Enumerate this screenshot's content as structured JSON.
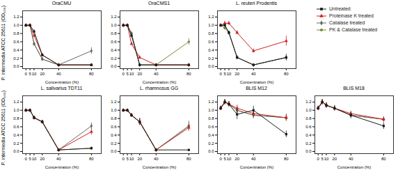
{
  "chart_data": [
    {
      "type": "line",
      "title": "OraCMU",
      "xlabel": "Concentration (%)",
      "ylabel": "P. intermedia ATCC 25611 (OD₆₀₀)",
      "x": [
        0,
        5,
        10,
        20,
        40,
        80
      ],
      "xlim": [
        -4,
        92
      ],
      "xticks": [
        0,
        5,
        10,
        20,
        40,
        80
      ],
      "ylim": [
        -0.05,
        1.35
      ],
      "yticks": [
        {
          "value": 0,
          "label": "0.0"
        },
        0.2,
        0.4,
        0.6,
        0.8,
        {
          "value": 1,
          "label": "1.0"
        },
        1.2
      ],
      "legend": "upper right",
      "series": [
        {
          "name": "Untreated",
          "color": "#1a1a1a",
          "marker": "square",
          "values": [
            1.0,
            1.0,
            0.85,
            0.28,
            0.04,
            0.04
          ],
          "errors": [
            0.03,
            0.03,
            0.04,
            0.04,
            0.01,
            0.01
          ]
        },
        {
          "name": "Proteinase K treated",
          "color": "#cc2222",
          "marker": "triangle",
          "values": [
            1.0,
            1.0,
            0.75,
            0.28,
            0.04,
            0.04
          ],
          "errors": [
            0.03,
            0.03,
            0.04,
            0.04,
            0.01,
            0.01
          ]
        },
        {
          "name": "Catalase treated",
          "color": "#666666",
          "marker": "diamond",
          "values": [
            1.0,
            1.0,
            0.55,
            0.18,
            0.04,
            0.38
          ],
          "errors": [
            0.03,
            0.03,
            0.04,
            0.04,
            0.01,
            0.08
          ]
        },
        {
          "name": "PK & Catalase treated",
          "color": "#778833",
          "marker": "circle",
          "values": [
            1.0,
            1.0,
            0.55,
            0.18,
            0.04,
            0.04
          ],
          "errors": [
            0.03,
            0.03,
            0.04,
            0.04,
            0.01,
            0.01
          ]
        }
      ]
    },
    {
      "type": "line",
      "title": "OraCMS1",
      "xlabel": "Concentration (%)",
      "x": [
        0,
        5,
        10,
        20,
        40,
        80
      ],
      "xlim": [
        -4,
        92
      ],
      "xticks": [
        0,
        5,
        10,
        20,
        40,
        80
      ],
      "ylim": [
        -0.05,
        1.35
      ],
      "yticks": [
        {
          "value": 0,
          "label": "0.0"
        },
        0.2,
        0.4,
        0.6,
        0.8,
        {
          "value": 1,
          "label": "1.0"
        },
        1.2
      ],
      "legend": "upper right",
      "series": [
        {
          "name": "Untreated",
          "color": "#1a1a1a",
          "marker": "square",
          "values": [
            1.0,
            1.0,
            0.75,
            0.04,
            0.04,
            0.04
          ],
          "errors": [
            0.03,
            0.03,
            0.04,
            0.01,
            0.01,
            0.01
          ]
        },
        {
          "name": "Proteinase K treated",
          "color": "#cc2222",
          "marker": "triangle",
          "values": [
            1.0,
            1.0,
            0.55,
            0.22,
            0.04,
            0.04
          ],
          "errors": [
            0.03,
            0.03,
            0.04,
            0.04,
            0.01,
            0.01
          ]
        },
        {
          "name": "Catalase treated",
          "color": "#666666",
          "marker": "diamond",
          "values": [
            1.0,
            1.0,
            0.8,
            0.04,
            0.04,
            0.04
          ],
          "errors": [
            0.03,
            0.03,
            0.04,
            0.01,
            0.01,
            0.01
          ]
        },
        {
          "name": "PK & Catalase treated",
          "color": "#778833",
          "marker": "circle",
          "values": [
            1.0,
            1.0,
            0.8,
            0.04,
            0.04,
            0.6
          ],
          "errors": [
            0.03,
            0.03,
            0.04,
            0.01,
            0.01,
            0.08
          ]
        }
      ]
    },
    {
      "type": "line",
      "title": "L. reuteri Prodentis",
      "xlabel": "Concentration (%)",
      "x": [
        0,
        5,
        10,
        20,
        40,
        80
      ],
      "xlim": [
        -4,
        92
      ],
      "xticks": [
        0,
        5,
        10,
        20,
        40,
        80
      ],
      "ylim": [
        -0.05,
        1.35
      ],
      "yticks": [
        {
          "value": 0,
          "label": "0.0"
        },
        0.2,
        0.4,
        0.6,
        0.8,
        {
          "value": 1,
          "label": "1.0"
        },
        1.2
      ],
      "legend": "upper right",
      "series": [
        {
          "name": "Untreated",
          "color": "#1a1a1a",
          "marker": "square",
          "values": [
            1.0,
            1.0,
            0.82,
            0.22,
            0.04,
            0.22
          ],
          "errors": [
            0.03,
            0.03,
            0.04,
            0.04,
            0.01,
            0.08
          ]
        },
        {
          "name": "Proteinase K treated",
          "color": "#cc2222",
          "marker": "triangle",
          "values": [
            1.0,
            1.05,
            1.05,
            0.82,
            0.38,
            0.62
          ],
          "errors": [
            0.03,
            0.05,
            0.05,
            0.05,
            0.05,
            0.12
          ]
        },
        {
          "name": "Catalase treated",
          "color": "#666666",
          "marker": "diamond",
          "values": [
            1.0,
            1.0,
            0.82,
            0.22,
            0.04,
            0.22
          ],
          "errors": [
            0.03,
            0.03,
            0.04,
            0.04,
            0.01,
            0.04
          ]
        },
        {
          "name": "PK & Catalase treated",
          "color": "#778833",
          "marker": "circle",
          "values": [
            1.0,
            0.93,
            0.82,
            0.22,
            0.04,
            0.22
          ],
          "errors": [
            0.03,
            0.03,
            0.04,
            0.04,
            0.01,
            0.04
          ]
        }
      ]
    },
    {
      "type": "line",
      "title": "L. salivarius TDT11",
      "xlabel": "Concentration (%)",
      "ylabel": "P. intermedia ATCC 25611 (OD₆₀₀)",
      "x": [
        0,
        5,
        10,
        20,
        40,
        80
      ],
      "xlim": [
        -4,
        92
      ],
      "xticks": [
        0,
        5,
        10,
        20,
        40,
        80
      ],
      "ylim": [
        -0.05,
        1.35
      ],
      "yticks": [
        {
          "value": 0,
          "label": "0.0"
        },
        0.2,
        0.4,
        0.6,
        0.8,
        {
          "value": 1,
          "label": "1.0"
        },
        1.2
      ],
      "legend": "upper right",
      "series": [
        {
          "name": "Untreated",
          "color": "#1a1a1a",
          "marker": "square",
          "values": [
            1.0,
            1.0,
            0.82,
            0.72,
            0.04,
            0.08
          ],
          "errors": [
            0.03,
            0.03,
            0.04,
            0.04,
            0.01,
            0.03
          ]
        },
        {
          "name": "Proteinase K treated",
          "color": "#cc2222",
          "marker": "triangle",
          "values": [
            1.0,
            1.0,
            0.82,
            0.72,
            0.04,
            0.48
          ],
          "errors": [
            0.03,
            0.03,
            0.04,
            0.04,
            0.01,
            0.08
          ]
        },
        {
          "name": "Catalase treated",
          "color": "#666666",
          "marker": "diamond",
          "values": [
            1.0,
            1.0,
            0.82,
            0.72,
            0.04,
            0.62
          ],
          "errors": [
            0.03,
            0.03,
            0.04,
            0.04,
            0.01,
            0.08
          ]
        },
        {
          "name": "PK & Catalase treated",
          "color": "#778833",
          "marker": "circle",
          "values": [
            1.0,
            1.0,
            0.82,
            0.72,
            0.04,
            0.08
          ],
          "errors": [
            0.03,
            0.03,
            0.04,
            0.04,
            0.01,
            0.03
          ]
        }
      ]
    },
    {
      "type": "line",
      "title": "L. rhamnosus GG",
      "xlabel": "Concentration (%)",
      "x": [
        0,
        5,
        10,
        20,
        40,
        80
      ],
      "xlim": [
        -4,
        92
      ],
      "xticks": [
        0,
        5,
        10,
        20,
        40,
        80
      ],
      "ylim": [
        -0.05,
        1.35
      ],
      "yticks": [
        {
          "value": 0,
          "label": "0.0"
        },
        0.2,
        0.4,
        0.6,
        0.8,
        {
          "value": 1,
          "label": "1.0"
        },
        1.2
      ],
      "legend": "upper right",
      "series": [
        {
          "name": "Untreated",
          "color": "#1a1a1a",
          "marker": "square",
          "values": [
            1.0,
            1.0,
            0.88,
            0.72,
            0.04,
            0.04
          ],
          "errors": [
            0.03,
            0.03,
            0.04,
            0.08,
            0.01,
            0.01
          ]
        },
        {
          "name": "Proteinase K treated",
          "color": "#cc2222",
          "marker": "triangle",
          "values": [
            1.0,
            1.0,
            0.88,
            0.72,
            0.04,
            0.58
          ],
          "errors": [
            0.03,
            0.03,
            0.04,
            0.08,
            0.01,
            0.08
          ]
        },
        {
          "name": "Catalase treated",
          "color": "#666666",
          "marker": "diamond",
          "values": [
            1.0,
            1.0,
            0.88,
            0.72,
            0.04,
            0.62
          ],
          "errors": [
            0.03,
            0.03,
            0.04,
            0.08,
            0.01,
            0.12
          ]
        },
        {
          "name": "PK & Catalase treated",
          "color": "#778833",
          "marker": "circle",
          "values": [
            1.0,
            1.0,
            0.88,
            0.72,
            0.04,
            0.62
          ],
          "errors": [
            0.03,
            0.03,
            0.04,
            0.08,
            0.01,
            0.08
          ]
        }
      ]
    },
    {
      "type": "line",
      "title": "BLIS M12",
      "xlabel": "Concentration (%)",
      "x": [
        0,
        5,
        10,
        20,
        40,
        80
      ],
      "xlim": [
        -4,
        92
      ],
      "xticks": [
        0,
        5,
        10,
        20,
        40,
        80
      ],
      "ylim": [
        -0.05,
        1.35
      ],
      "yticks": [
        {
          "value": 0,
          "label": "0.0"
        },
        0.2,
        0.4,
        0.6,
        0.8,
        {
          "value": 1,
          "label": "1.0"
        },
        1.2
      ],
      "legend": "upper right",
      "series": [
        {
          "name": "Untreated",
          "color": "#1a1a1a",
          "marker": "square",
          "values": [
            1.05,
            1.2,
            1.15,
            0.9,
            1.0,
            0.42
          ],
          "errors": [
            0.05,
            0.06,
            0.06,
            0.12,
            0.1,
            0.08
          ]
        },
        {
          "name": "Proteinase K treated",
          "color": "#cc2222",
          "marker": "triangle",
          "values": [
            1.05,
            1.2,
            1.15,
            1.05,
            0.92,
            0.82
          ],
          "errors": [
            0.05,
            0.06,
            0.06,
            0.08,
            0.08,
            0.08
          ]
        },
        {
          "name": "Catalase treated",
          "color": "#666666",
          "marker": "diamond",
          "values": [
            1.05,
            1.2,
            1.15,
            1.0,
            0.88,
            0.82
          ],
          "errors": [
            0.05,
            0.06,
            0.06,
            0.08,
            0.08,
            0.08
          ]
        },
        {
          "name": "PK & Catalase treated",
          "color": "#778833",
          "marker": "circle",
          "values": [
            1.05,
            1.2,
            1.15,
            1.0,
            0.88,
            0.82
          ],
          "errors": [
            0.05,
            0.06,
            0.06,
            0.08,
            0.08,
            0.08
          ]
        }
      ]
    },
    {
      "type": "line",
      "title": "BLIS M18",
      "xlabel": "Concentration (%)",
      "x": [
        0,
        5,
        10,
        20,
        40,
        80
      ],
      "xlim": [
        -4,
        92
      ],
      "xticks": [
        0,
        5,
        10,
        20,
        40,
        80
      ],
      "ylim": [
        -0.05,
        1.35
      ],
      "yticks": [
        {
          "value": 0,
          "label": "0.0"
        },
        0.2,
        0.4,
        0.6,
        0.8,
        {
          "value": 1,
          "label": "1.0"
        },
        1.2
      ],
      "legend": "upper right",
      "series": [
        {
          "name": "Untreated",
          "color": "#1a1a1a",
          "marker": "square",
          "values": [
            1.05,
            1.2,
            1.12,
            1.05,
            0.88,
            0.62
          ],
          "errors": [
            0.05,
            0.06,
            0.06,
            0.06,
            0.08,
            0.08
          ]
        },
        {
          "name": "Proteinase K treated",
          "color": "#cc2222",
          "marker": "triangle",
          "values": [
            1.05,
            1.2,
            1.12,
            1.05,
            0.92,
            0.78
          ],
          "errors": [
            0.05,
            0.06,
            0.06,
            0.06,
            0.06,
            0.06
          ]
        },
        {
          "name": "Catalase treated",
          "color": "#666666",
          "marker": "diamond",
          "values": [
            1.05,
            1.2,
            1.12,
            1.05,
            0.88,
            0.78
          ],
          "errors": [
            0.05,
            0.06,
            0.06,
            0.06,
            0.06,
            0.06
          ]
        },
        {
          "name": "PK & Catalase treated",
          "color": "#778833",
          "marker": "circle",
          "values": [
            1.05,
            1.2,
            1.12,
            1.05,
            0.88,
            0.78
          ],
          "errors": [
            0.05,
            0.06,
            0.06,
            0.06,
            0.06,
            0.06
          ]
        }
      ]
    }
  ]
}
